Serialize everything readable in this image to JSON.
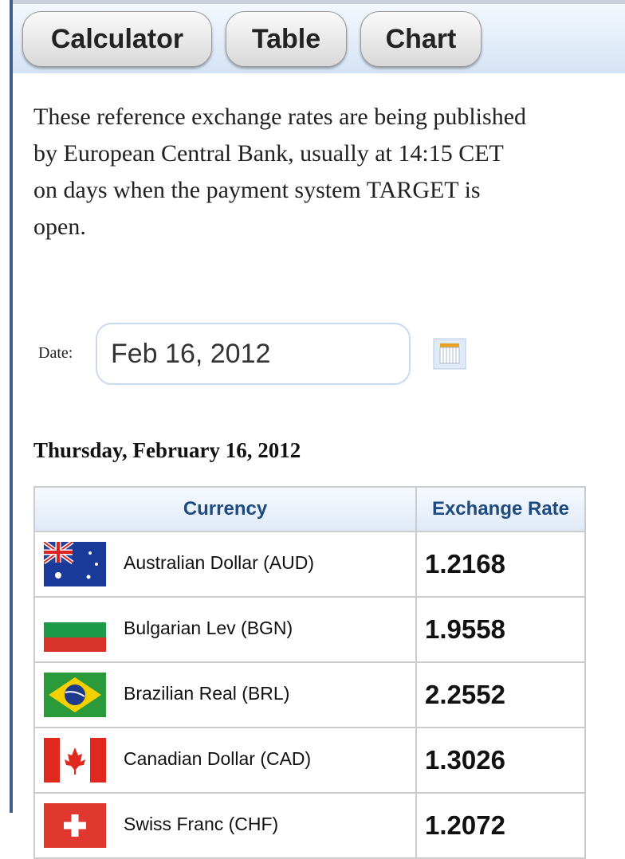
{
  "tabs": [
    "Calculator",
    "Table",
    "Chart"
  ],
  "description": {
    "lines": [
      "These reference exchange rates are being published",
      "by European Central Bank, usually at 14:15 CET",
      "on days when the payment system TARGET is",
      "open."
    ]
  },
  "date_label": "Date:",
  "date_value": "Feb 16, 2012",
  "heading": "Thursday, February 16, 2012",
  "table": {
    "headers": [
      "Currency",
      "Exchange Rate"
    ],
    "rows": [
      [
        "Australian Dollar (AUD)",
        "1.2168"
      ],
      [
        "Bulgarian Lev (BGN)",
        "1.9558"
      ],
      [
        "Brazilian Real (BRL)",
        "2.2552"
      ],
      [
        "Canadian Dollar (CAD)",
        "1.3026"
      ],
      [
        "Swiss Franc (CHF)",
        "1.2072"
      ]
    ]
  }
}
